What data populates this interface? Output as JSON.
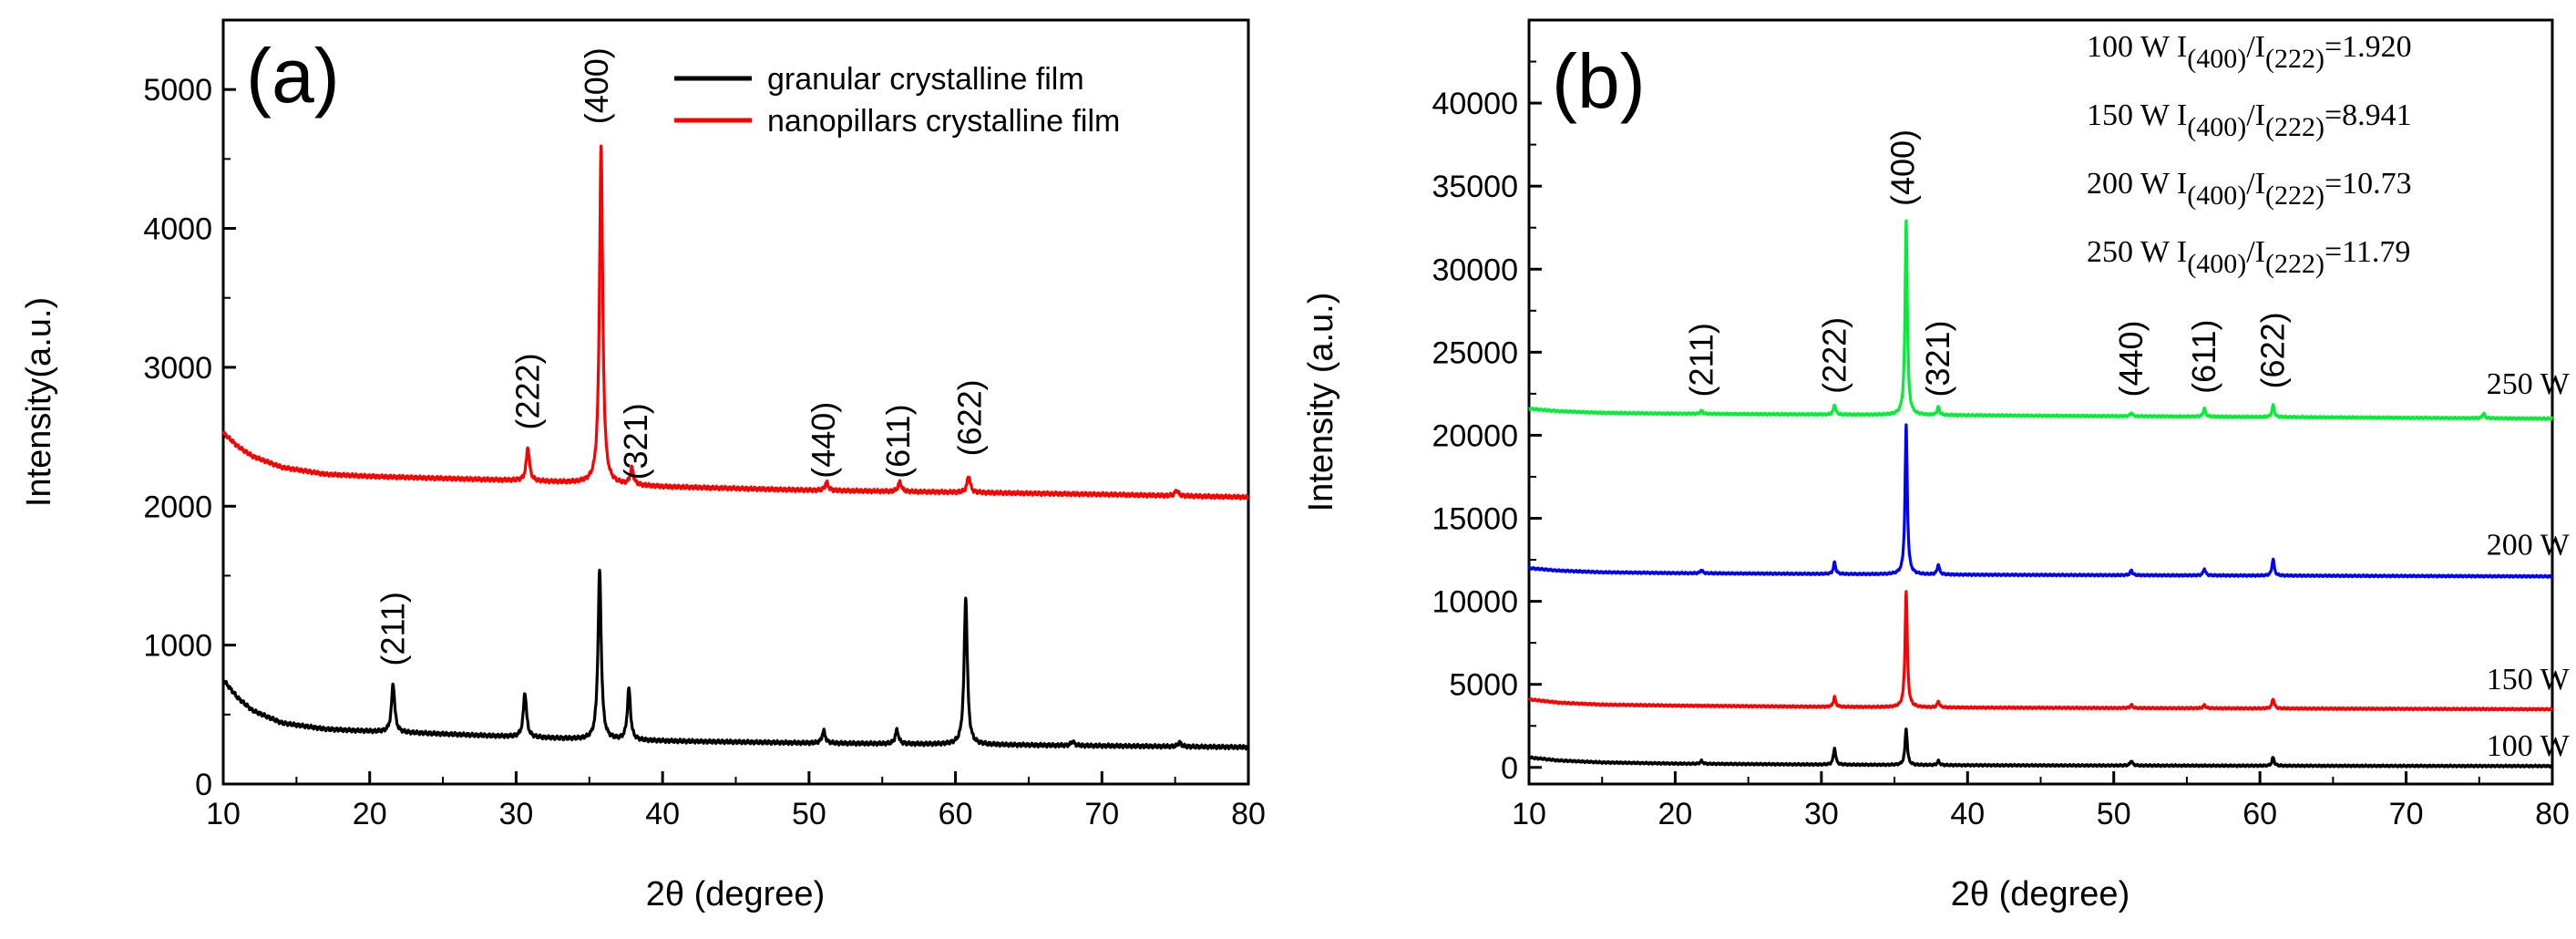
{
  "chart_data": [
    {
      "panel": "a",
      "type": "line",
      "panel_label": "(a)",
      "xlabel": "2θ (degree)",
      "ylabel": "Intensity(a.u.)",
      "xlim": [
        10,
        80
      ],
      "ylim": [
        0,
        5500
      ],
      "xticks": [
        10,
        20,
        30,
        40,
        50,
        60,
        70,
        80
      ],
      "yticks": [
        0,
        1000,
        2000,
        3000,
        4000,
        5000
      ],
      "legend_position": "top-right",
      "series": [
        {
          "name": "granular crystalline film",
          "color": "#000000",
          "baseline": [
            [
              10,
              750
            ],
            [
              11,
              620
            ],
            [
              12,
              530
            ],
            [
              14,
              440
            ],
            [
              17,
              395
            ],
            [
              20,
              380
            ],
            [
              25,
              360
            ],
            [
              30,
              340
            ],
            [
              35,
              320
            ],
            [
              40,
              310
            ],
            [
              50,
              295
            ],
            [
              60,
              285
            ],
            [
              70,
              275
            ],
            [
              80,
              265
            ]
          ],
          "peaks": [
            [
              21.6,
              350
            ],
            [
              30.6,
              320
            ],
            [
              35.7,
              1220
            ],
            [
              37.7,
              370
            ],
            [
              51.0,
              90
            ],
            [
              56.0,
              100
            ],
            [
              60.7,
              1060
            ],
            [
              68.0,
              30
            ],
            [
              75.3,
              30
            ]
          ]
        },
        {
          "name": "nanopillars crystalline film",
          "color": "#ff0000",
          "baseline": [
            [
              10,
              2530
            ],
            [
              11,
              2430
            ],
            [
              12,
              2360
            ],
            [
              14,
              2280
            ],
            [
              17,
              2230
            ],
            [
              20,
              2215
            ],
            [
              25,
              2200
            ],
            [
              30,
              2185
            ],
            [
              35,
              2165
            ],
            [
              40,
              2140
            ],
            [
              50,
              2115
            ],
            [
              60,
              2100
            ],
            [
              70,
              2085
            ],
            [
              80,
              2065
            ]
          ],
          "peaks": [
            [
              30.8,
              240
            ],
            [
              35.8,
              2440
            ],
            [
              37.9,
              120
            ],
            [
              51.2,
              60
            ],
            [
              56.2,
              70
            ],
            [
              60.9,
              120
            ],
            [
              75.1,
              40
            ]
          ]
        }
      ],
      "annotations": [
        {
          "label": "(211)",
          "x": 21.6,
          "y": 850
        },
        {
          "label": "(222)",
          "x": 30.8,
          "y": 2550
        },
        {
          "label": "(400)",
          "x": 35.5,
          "y": 4750
        },
        {
          "label": "(321)",
          "x": 38.2,
          "y": 2190
        },
        {
          "label": "(440)",
          "x": 51.0,
          "y": 2200
        },
        {
          "label": "(611)",
          "x": 56.1,
          "y": 2200
        },
        {
          "label": "(622)",
          "x": 61.0,
          "y": 2360
        }
      ]
    },
    {
      "panel": "b",
      "type": "line",
      "panel_label": "(b)",
      "xlabel": "2θ (degree)",
      "ylabel": "Intensity (a.u.)",
      "xlim": [
        10,
        80
      ],
      "ylim": [
        -1000,
        45000
      ],
      "xticks": [
        10,
        20,
        30,
        40,
        50,
        60,
        70,
        80
      ],
      "yticks": [
        0,
        5000,
        10000,
        15000,
        20000,
        25000,
        30000,
        35000,
        40000
      ],
      "series": [
        {
          "name": "100 W",
          "color": "#000000",
          "baseline": [
            [
              10,
              600
            ],
            [
              12,
              420
            ],
            [
              15,
              300
            ],
            [
              20,
              230
            ],
            [
              30,
              170
            ],
            [
              40,
              130
            ],
            [
              60,
              100
            ],
            [
              80,
              80
            ]
          ],
          "peaks": [
            [
              21.8,
              180
            ],
            [
              30.9,
              1000
            ],
            [
              35.8,
              2200
            ],
            [
              38.0,
              250
            ],
            [
              51.2,
              300
            ],
            [
              60.9,
              500
            ]
          ]
        },
        {
          "name": "150 W",
          "color": "#ff0000",
          "baseline": [
            [
              10,
              4100
            ],
            [
              12,
              3900
            ],
            [
              15,
              3780
            ],
            [
              20,
              3720
            ],
            [
              30,
              3650
            ],
            [
              40,
              3600
            ],
            [
              60,
              3550
            ],
            [
              80,
              3500
            ]
          ],
          "peaks": [
            [
              30.9,
              600
            ],
            [
              35.8,
              7000
            ],
            [
              38.0,
              350
            ],
            [
              51.2,
              200
            ],
            [
              56.2,
              200
            ],
            [
              60.9,
              600
            ]
          ]
        },
        {
          "name": "200 W",
          "color": "#0000ff",
          "baseline": [
            [
              10,
              12000
            ],
            [
              12,
              11850
            ],
            [
              15,
              11750
            ],
            [
              20,
              11700
            ],
            [
              30,
              11650
            ],
            [
              40,
              11600
            ],
            [
              60,
              11550
            ],
            [
              80,
              11500
            ]
          ],
          "peaks": [
            [
              21.8,
              200
            ],
            [
              30.9,
              700
            ],
            [
              35.8,
              9000
            ],
            [
              38.0,
              600
            ],
            [
              51.2,
              300
            ],
            [
              56.2,
              400
            ],
            [
              60.9,
              1000
            ]
          ]
        },
        {
          "name": "250 W",
          "color": "#00ee33",
          "baseline": [
            [
              10,
              21600
            ],
            [
              12,
              21450
            ],
            [
              15,
              21350
            ],
            [
              20,
              21300
            ],
            [
              30,
              21250
            ],
            [
              40,
              21200
            ],
            [
              60,
              21100
            ],
            [
              80,
              21000
            ]
          ],
          "peaks": [
            [
              21.8,
              200
            ],
            [
              30.9,
              600
            ],
            [
              35.8,
              11700
            ],
            [
              38.0,
              500
            ],
            [
              51.2,
              200
            ],
            [
              56.2,
              500
            ],
            [
              60.9,
              700
            ],
            [
              75.3,
              300
            ]
          ]
        }
      ],
      "series_labels": [
        {
          "label": "250 W",
          "x": 75.5,
          "y": 22500
        },
        {
          "label": "200 W",
          "x": 75.5,
          "y": 12800
        },
        {
          "label": "150 W",
          "x": 75.5,
          "y": 4700
        },
        {
          "label": "100 W",
          "x": 75.5,
          "y": 700
        }
      ],
      "annotations": [
        {
          "label": "(211)",
          "x": 21.8,
          "y": 22300
        },
        {
          "label": "(222)",
          "x": 30.9,
          "y": 22500
        },
        {
          "label": "(400)",
          "x": 35.6,
          "y": 33800
        },
        {
          "label": "(321)",
          "x": 38.0,
          "y": 22300
        },
        {
          "label": "(440)",
          "x": 51.2,
          "y": 22300
        },
        {
          "label": "(611)",
          "x": 56.2,
          "y": 22500
        },
        {
          "label": "(622)",
          "x": 60.9,
          "y": 22800
        }
      ],
      "ratio_table": [
        {
          "power": "100 W",
          "ratio": "1.920"
        },
        {
          "power": "150 W",
          "ratio": "8.941"
        },
        {
          "power": "200 W",
          "ratio": "10.73"
        },
        {
          "power": "250 W",
          "ratio": "11.79"
        }
      ],
      "ratio_text": {
        "i": "I",
        "sub_num": "(400)",
        "slash": "/",
        "sub_den": "(222)",
        "eq": "="
      }
    }
  ]
}
